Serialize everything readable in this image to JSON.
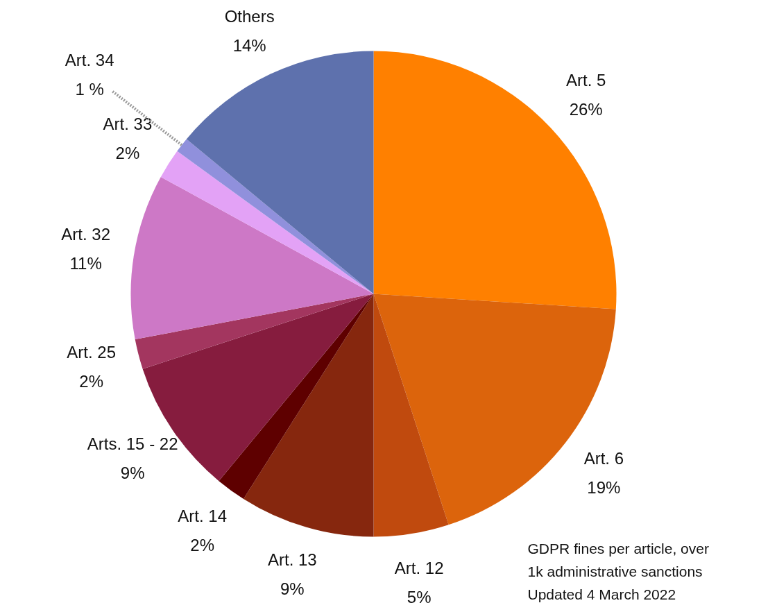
{
  "chart_data": {
    "type": "pie",
    "categories": [
      "Art. 5",
      "Art. 6",
      "Art. 12",
      "Art. 13",
      "Art. 14",
      "Arts. 15 - 22",
      "Art. 25",
      "Art. 32",
      "Art. 33",
      "Art. 34",
      "Others"
    ],
    "values": [
      26,
      19,
      5,
      9,
      2,
      9,
      2,
      11,
      2,
      1,
      14
    ],
    "value_labels": [
      "26%",
      "19%",
      "5%",
      "9%",
      "2%",
      "9%",
      "2%",
      "11%",
      "2%",
      "1 %",
      "14%"
    ],
    "colors": [
      "#ff8000",
      "#dc640c",
      "#c04a0e",
      "#86270e",
      "#5e0000",
      "#861c3e",
      "#a3365f",
      "#cd78c6",
      "#e3a2f6",
      "#9090dc",
      "#5e71ad"
    ],
    "annotations": [
      "GDPR fines per article, over\n1k administrative sanctions\nUpdated 4 March 2022"
    ]
  }
}
